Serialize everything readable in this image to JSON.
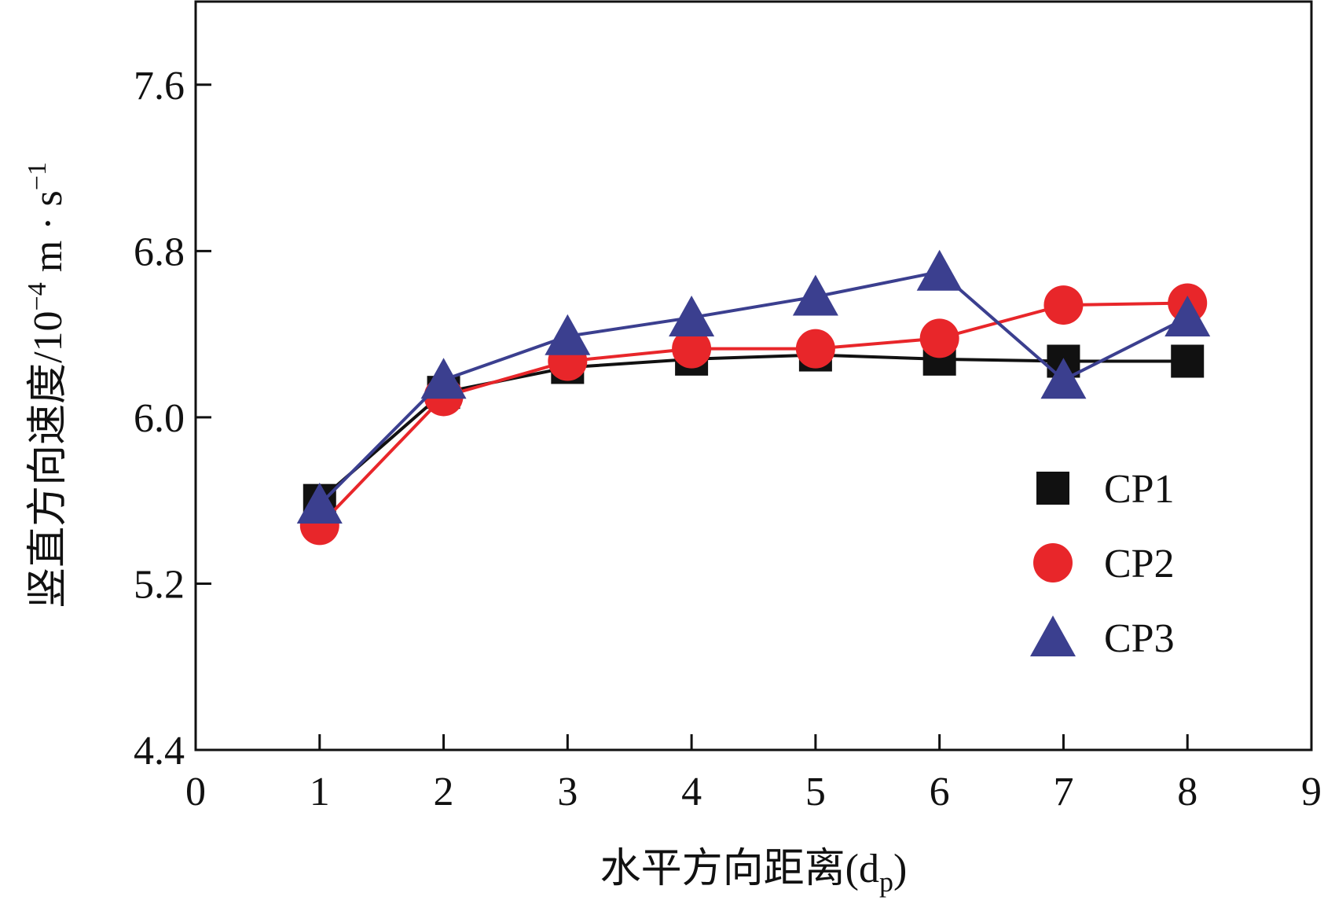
{
  "chart_data": {
    "type": "line",
    "xlabel": "水平方向距离(d",
    "xlabel_sub": "p",
    "xlabel_close": ")",
    "ylabel_main": "竖直方向速度/10",
    "ylabel_exp": "−4",
    "ylabel_unit": " m · s",
    "ylabel_exp2": "−1",
    "xlim": [
      0,
      9
    ],
    "ylim": [
      4.4,
      8.0
    ],
    "xticks": [
      "0",
      "1",
      "2",
      "3",
      "4",
      "5",
      "6",
      "7",
      "8",
      "9"
    ],
    "yticks": [
      "4.4",
      "5.2",
      "6.0",
      "6.8",
      "7.6"
    ],
    "x": [
      1,
      2,
      3,
      4,
      5,
      6,
      7,
      8
    ],
    "series": [
      {
        "name": "CP1",
        "marker": "square",
        "color": "#111111",
        "values": [
          5.6,
          6.12,
          6.24,
          6.28,
          6.3,
          6.28,
          6.27,
          6.27
        ]
      },
      {
        "name": "CP2",
        "marker": "circle",
        "color": "#e8262a",
        "values": [
          5.48,
          6.1,
          6.27,
          6.33,
          6.33,
          6.38,
          6.54,
          6.55
        ]
      },
      {
        "name": "CP3",
        "marker": "triangle",
        "color": "#3b3f8f",
        "values": [
          5.58,
          6.18,
          6.39,
          6.48,
          6.58,
          6.7,
          6.18,
          6.48
        ]
      }
    ],
    "legend_position": "right-middle"
  }
}
